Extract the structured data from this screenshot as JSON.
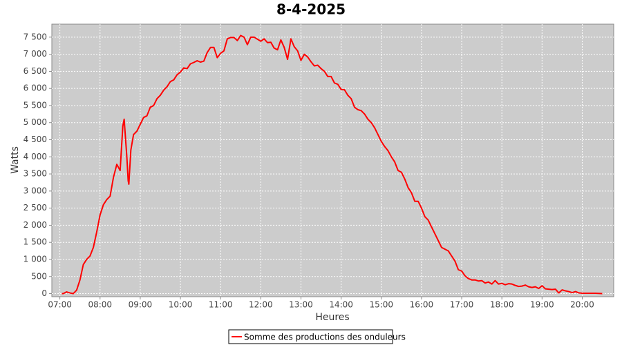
{
  "chart_data": {
    "type": "line",
    "title": "8-4-2025",
    "x_label": "Heures",
    "y_label": "Watts",
    "xlim": [
      "06:48",
      "20:47"
    ],
    "ylim": [
      -90,
      7880
    ],
    "xticks": [
      "07:00",
      "08:00",
      "09:00",
      "10:00",
      "11:00",
      "12:00",
      "13:00",
      "14:00",
      "15:00",
      "16:00",
      "17:00",
      "18:00",
      "19:00",
      "20:00"
    ],
    "yticks": [
      0,
      500,
      {
        "value": 1000,
        "label": "1 000"
      },
      {
        "value": 1500,
        "label": "1 500"
      },
      {
        "value": 2000,
        "label": "2 000"
      },
      {
        "value": 2500,
        "label": "2 500"
      },
      {
        "value": 3000,
        "label": "3 000"
      },
      {
        "value": 3500,
        "label": "3 500"
      },
      {
        "value": 4000,
        "label": "4 000"
      },
      {
        "value": 4500,
        "label": "4 500"
      },
      {
        "value": 5000,
        "label": "5 000"
      },
      {
        "value": 5500,
        "label": "5 500"
      },
      {
        "value": 6000,
        "label": "6 000"
      },
      {
        "value": 6500,
        "label": "6 500"
      },
      {
        "value": 7000,
        "label": "7 000"
      },
      {
        "value": 7500,
        "label": "7 500"
      }
    ],
    "grid": true,
    "x": [
      "07:03",
      "07:05",
      "07:10",
      "07:15",
      "07:20",
      "07:25",
      "07:30",
      "07:35",
      "07:40",
      "07:45",
      "07:50",
      "07:55",
      "08:00",
      "08:05",
      "08:10",
      "08:15",
      "08:20",
      "08:25",
      "08:30",
      "08:34",
      "08:36",
      "08:40",
      "08:42",
      "08:43",
      "08:46",
      "08:50",
      "08:55",
      "09:00",
      "09:05",
      "09:10",
      "09:15",
      "09:20",
      "09:25",
      "09:30",
      "09:35",
      "09:40",
      "09:45",
      "09:50",
      "09:55",
      "10:00",
      "10:05",
      "10:10",
      "10:15",
      "10:20",
      "10:25",
      "10:30",
      "10:35",
      "10:40",
      "10:45",
      "10:50",
      "10:55",
      "11:00",
      "11:05",
      "11:10",
      "11:15",
      "11:20",
      "11:25",
      "11:30",
      "11:35",
      "11:40",
      "11:45",
      "11:50",
      "11:55",
      "12:00",
      "12:05",
      "12:10",
      "12:15",
      "12:20",
      "12:25",
      "12:30",
      "12:35",
      "12:40",
      "12:45",
      "12:50",
      "12:55",
      "13:00",
      "13:05",
      "13:10",
      "13:15",
      "13:20",
      "13:25",
      "13:30",
      "13:35",
      "13:40",
      "13:45",
      "13:50",
      "13:55",
      "14:00",
      "14:05",
      "14:10",
      "14:15",
      "14:20",
      "14:25",
      "14:30",
      "14:35",
      "14:40",
      "14:45",
      "14:50",
      "14:55",
      "15:00",
      "15:05",
      "15:10",
      "15:15",
      "15:20",
      "15:25",
      "15:30",
      "15:35",
      "15:40",
      "15:45",
      "15:50",
      "15:55",
      "16:00",
      "16:05",
      "16:10",
      "16:15",
      "16:20",
      "16:25",
      "16:30",
      "16:35",
      "16:40",
      "16:45",
      "16:50",
      "16:55",
      "17:00",
      "17:05",
      "17:10",
      "17:15",
      "17:20",
      "17:25",
      "17:30",
      "17:35",
      "17:40",
      "17:45",
      "17:50",
      "17:55",
      "18:00",
      "18:05",
      "18:10",
      "18:15",
      "18:20",
      "18:25",
      "18:30",
      "18:35",
      "18:40",
      "18:45",
      "18:50",
      "18:55",
      "19:00",
      "19:05",
      "19:10",
      "19:15",
      "19:20",
      "19:25",
      "19:30",
      "19:35",
      "19:40",
      "19:45",
      "19:50",
      "19:55",
      "20:00",
      "20:10",
      "20:20",
      "20:30"
    ],
    "legend": "bottom",
    "series": [
      {
        "name": "Somme des productions des onduleurs",
        "color": "#ff0000",
        "values": [
          0,
          0,
          50,
          20,
          0,
          100,
          400,
          850,
          1000,
          1100,
          1350,
          1800,
          2300,
          2600,
          2750,
          2850,
          3400,
          3780,
          3600,
          4900,
          5100,
          4000,
          3300,
          3200,
          4200,
          4650,
          4750,
          4950,
          5150,
          5200,
          5450,
          5500,
          5700,
          5800,
          5950,
          6050,
          6200,
          6250,
          6400,
          6480,
          6600,
          6580,
          6720,
          6760,
          6810,
          6770,
          6800,
          7050,
          7200,
          7200,
          6900,
          7030,
          7100,
          7450,
          7490,
          7490,
          7400,
          7550,
          7500,
          7280,
          7500,
          7500,
          7440,
          7380,
          7450,
          7340,
          7350,
          7180,
          7130,
          7420,
          7200,
          6850,
          7450,
          7220,
          7100,
          6820,
          7000,
          6920,
          6780,
          6660,
          6680,
          6580,
          6500,
          6350,
          6350,
          6160,
          6120,
          5970,
          5960,
          5800,
          5700,
          5450,
          5380,
          5350,
          5250,
          5100,
          5000,
          4850,
          4650,
          4450,
          4300,
          4180,
          4000,
          3850,
          3600,
          3550,
          3350,
          3100,
          2950,
          2700,
          2700,
          2500,
          2250,
          2150,
          1950,
          1750,
          1550,
          1350,
          1300,
          1250,
          1100,
          950,
          700,
          660,
          520,
          440,
          400,
          400,
          370,
          380,
          310,
          340,
          280,
          380,
          280,
          300,
          260,
          290,
          280,
          240,
          210,
          220,
          250,
          200,
          180,
          200,
          150,
          230,
          140,
          130,
          120,
          130,
          20,
          110,
          80,
          60,
          30,
          60,
          20,
          10,
          10,
          10,
          0
        ]
      }
    ]
  }
}
